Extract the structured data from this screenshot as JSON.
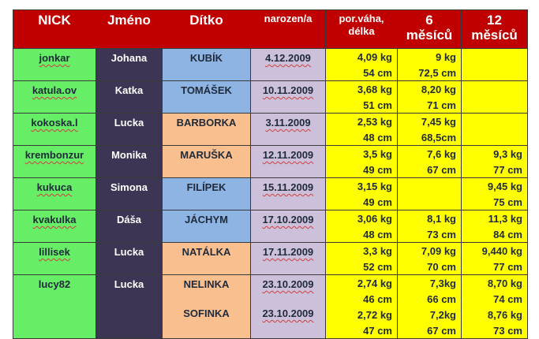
{
  "headers": {
    "nick": "NICK",
    "jmeno": "Jméno",
    "ditko": "Dítko",
    "narozen": "narozen/a",
    "porodni_line1": "por.váha,",
    "porodni_line2": "délka",
    "m6_line1": "6",
    "m6_line2": "měsíců",
    "m12_line1": "12",
    "m12_line2": "měsíců"
  },
  "colors": {
    "header": "#c00000",
    "nick": "#66ee66",
    "jmeno": "#3d3554",
    "boy": "#8db4e2",
    "girl": "#f9bf8f",
    "date": "#ccc0da",
    "values": "#ffff00"
  },
  "rows": [
    {
      "nick": "jonkar",
      "jmeno": "Johana",
      "ditko": "KUBÍK",
      "gender": "boy",
      "date": "4.12.2009",
      "birth_w": "4,09 kg",
      "birth_l": "54 cm",
      "m6_w": "9 kg",
      "m6_l": "72,5 cm",
      "m12_w": "",
      "m12_l": ""
    },
    {
      "nick": "katula.ov",
      "jmeno": "Katka",
      "ditko": "TOMÁŠEK",
      "gender": "boy",
      "date": "10.11.2009",
      "birth_w": "3,68 kg",
      "birth_l": "51 cm",
      "m6_w": "8,20 kg",
      "m6_l": "71 cm",
      "m12_w": "",
      "m12_l": ""
    },
    {
      "nick": "kokoska.l",
      "jmeno": "Lucka",
      "ditko": "BARBORKA",
      "gender": "girl",
      "date": "3.11.2009",
      "birth_w": "2,53 kg",
      "birth_l": "48 cm",
      "m6_w": "7,45 kg",
      "m6_l": "68,5cm",
      "m12_w": "",
      "m12_l": ""
    },
    {
      "nick": "krembonzur",
      "jmeno": "Monika",
      "ditko": "MARUŠKA",
      "gender": "girl",
      "date": "12.11.2009",
      "birth_w": "3,5 kg",
      "birth_l": "49 cm",
      "m6_w": "7,6 kg",
      "m6_l": "67 cm",
      "m12_w": "9,3 kg",
      "m12_l": "77 cm"
    },
    {
      "nick": "kukuca",
      "jmeno": "Simona",
      "ditko": "FILÍPEK",
      "gender": "boy",
      "date": "15.11.2009",
      "birth_w": "3,15 kg",
      "birth_l": "49 cm",
      "m6_w": "",
      "m6_l": "",
      "m12_w": "9,45 kg",
      "m12_l": "75 cm"
    },
    {
      "nick": "kvakulka",
      "jmeno": "Dáša",
      "ditko": "JÁCHYM",
      "gender": "boy",
      "date": "17.10.2009",
      "birth_w": "3,06 kg",
      "birth_l": "48 cm",
      "m6_w": "8,1 kg",
      "m6_l": "73 cm",
      "m12_w": "11,3 kg",
      "m12_l": "84 cm"
    },
    {
      "nick": "lillisek",
      "jmeno": "Lucka",
      "ditko": "NATÁLKA",
      "gender": "girl",
      "date": "17.11.2009",
      "birth_w": "3,3 kg",
      "birth_l": "52 cm",
      "m6_w": "7,09 kg",
      "m6_l": "70 cm",
      "m12_w": "9,440 kg",
      "m12_l": "77 cm"
    }
  ],
  "twins": {
    "nick": "lucy82",
    "jmeno": "Lucka",
    "child1": {
      "ditko": "NELINKA",
      "date": "23.10.2009",
      "birth_w": "2,74 kg",
      "birth_l": "46 cm",
      "m6_w": "7,3kg",
      "m6_l": "66 cm",
      "m12_w": "8,70 kg",
      "m12_l": "74 cm"
    },
    "child2": {
      "ditko": "SOFINKA",
      "date": "23.10.2009",
      "birth_w": "2,72 kg",
      "birth_l": "47 cm",
      "m6_w": "7,2kg",
      "m6_l": "67 cm",
      "m12_w": "8,76 kg",
      "m12_l": "73 cm"
    }
  }
}
